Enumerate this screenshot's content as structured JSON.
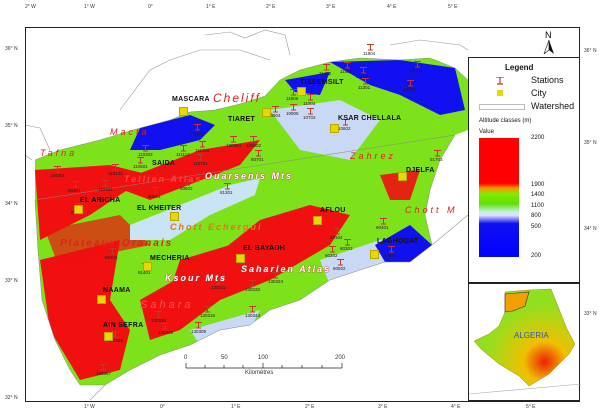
{
  "axes": {
    "top_longitude": [
      "2° W",
      "1° W",
      "0°",
      "1° E",
      "2° E",
      "3° E",
      "4° E",
      "5° E"
    ],
    "bottom_longitude": [
      "1° W",
      "0°",
      "1° E",
      "2° E",
      "3° E",
      "4° E",
      "5° E"
    ],
    "left_latitude": [
      "36° N",
      "35° N",
      "34° N",
      "33° N",
      "32° N"
    ],
    "right_latitude": [
      "36° N",
      "35° N",
      "34° N",
      "33° N"
    ]
  },
  "north_arrow": "N",
  "cities": [
    "MASCARA",
    "TISSEMSILT",
    "TIARET",
    "KSAR CHELLALA",
    "SAIDA",
    "DJELFA",
    "EL ARICHA",
    "EL KHEITER",
    "AFLOU",
    "EL BAYADH",
    "LAGHOUAT",
    "MECHERIA",
    "NAAMA",
    "AIN SEFRA"
  ],
  "region_labels": {
    "red": [
      "Cheliff",
      "Macta",
      "Tafna",
      "Zahrez",
      "Chott M",
      "Sahara"
    ],
    "relief": [
      "Ouarsenis Mts",
      "Tellien Atlas",
      "Chott Echergui",
      "Plateaux Oranais",
      "Ksour Mts",
      "Saharien Atlas"
    ]
  },
  "stations": [
    "11402",
    "11606",
    "11205",
    "11301",
    "50102",
    "90201",
    "11806",
    "11003",
    "10904",
    "10905",
    "10703",
    "10602",
    "51703",
    "11804",
    "111204",
    "110302",
    "111112",
    "111203",
    "110501",
    "110701",
    "130504",
    "130502",
    "80701",
    "110103",
    "160401",
    "80301",
    "110101",
    "80501",
    "80602",
    "81301",
    "80102",
    "80401",
    "81401",
    "60401",
    "60104",
    "60303",
    "60202",
    "60502",
    "60403",
    "130324",
    "130222",
    "130333",
    "130316",
    "130344",
    "130309",
    "130336",
    "130329",
    "130346",
    "130357"
  ],
  "legend": {
    "title": "Legend",
    "items": [
      "Stations",
      "City",
      "Watershed"
    ],
    "altitude_title": "Altitude classes (m)",
    "value_label": "Value",
    "altitude_ticks": [
      "2200",
      "1900",
      "1400",
      "1100",
      "800",
      "500",
      "200"
    ],
    "colors": {
      "station": "#c0392b",
      "city": "#e6d800",
      "high": "#ff0000",
      "mid": "#66ee00",
      "low": "#0000ff"
    }
  },
  "scale_bar": {
    "ticks": [
      "0",
      "50",
      "100",
      "200"
    ],
    "unit": "Kilomètres"
  },
  "inset": {
    "country": "ALGERIA"
  }
}
